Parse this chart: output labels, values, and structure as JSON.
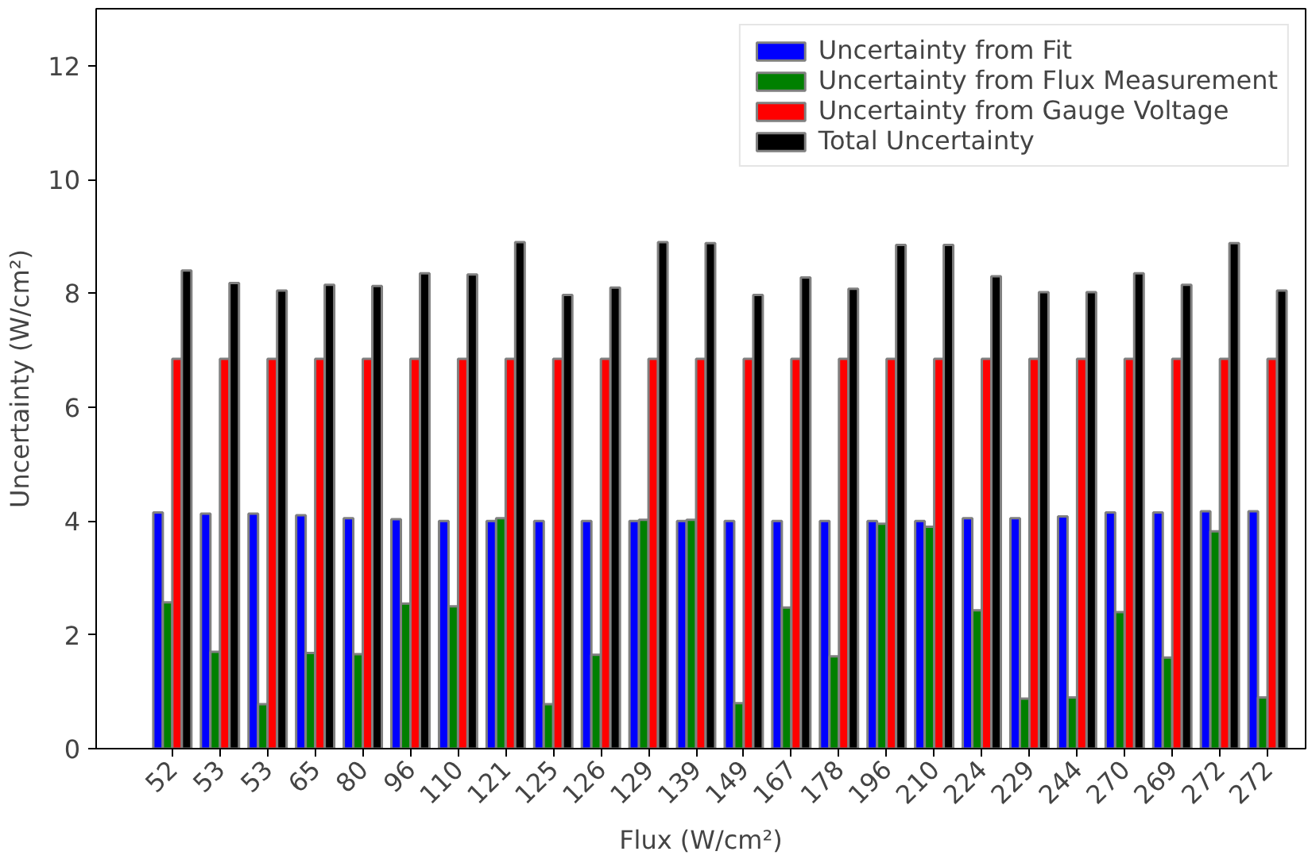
{
  "chart_data": {
    "type": "bar",
    "xlabel": "Flux (W/cm²)",
    "ylabel": "Uncertainty (W/cm²)",
    "categories": [
      "52",
      "53",
      "53",
      "65",
      "80",
      "96",
      "110",
      "121",
      "125",
      "126",
      "129",
      "139",
      "149",
      "167",
      "178",
      "196",
      "210",
      "224",
      "229",
      "244",
      "270",
      "269",
      "272",
      "272"
    ],
    "series": [
      {
        "name": "Uncertainty from Fit",
        "color": "#0000ff",
        "values": [
          4.15,
          4.13,
          4.13,
          4.1,
          4.05,
          4.03,
          4.0,
          4.0,
          4.0,
          4.0,
          4.0,
          4.0,
          4.0,
          4.0,
          4.0,
          4.0,
          4.0,
          4.05,
          4.05,
          4.08,
          4.15,
          4.15,
          4.17,
          4.17
        ]
      },
      {
        "name": "Uncertainty from Flux Measurement",
        "color": "#008000",
        "values": [
          2.57,
          1.7,
          0.78,
          1.68,
          1.66,
          2.55,
          2.5,
          4.05,
          0.78,
          1.65,
          4.02,
          4.02,
          0.8,
          2.48,
          1.62,
          3.95,
          3.9,
          2.43,
          0.88,
          0.9,
          2.4,
          1.6,
          3.82,
          0.9
        ]
      },
      {
        "name": "Uncertainty from Gauge Voltage",
        "color": "#ff0000",
        "values": [
          6.85,
          6.85,
          6.85,
          6.85,
          6.85,
          6.85,
          6.85,
          6.85,
          6.85,
          6.85,
          6.85,
          6.85,
          6.85,
          6.85,
          6.85,
          6.85,
          6.85,
          6.85,
          6.85,
          6.85,
          6.85,
          6.85,
          6.85,
          6.85
        ]
      },
      {
        "name": "Total Uncertainty",
        "color": "#000000",
        "values": [
          8.4,
          8.18,
          8.05,
          8.15,
          8.13,
          8.35,
          8.33,
          8.9,
          7.97,
          8.1,
          8.9,
          8.88,
          7.97,
          8.28,
          8.08,
          8.85,
          8.85,
          8.3,
          8.02,
          8.02,
          8.35,
          8.15,
          8.88,
          8.05
        ]
      }
    ],
    "ylim": [
      0,
      13
    ],
    "yticks": [
      0,
      2,
      4,
      6,
      8,
      10,
      12
    ],
    "grid": false,
    "legend": "top right"
  }
}
